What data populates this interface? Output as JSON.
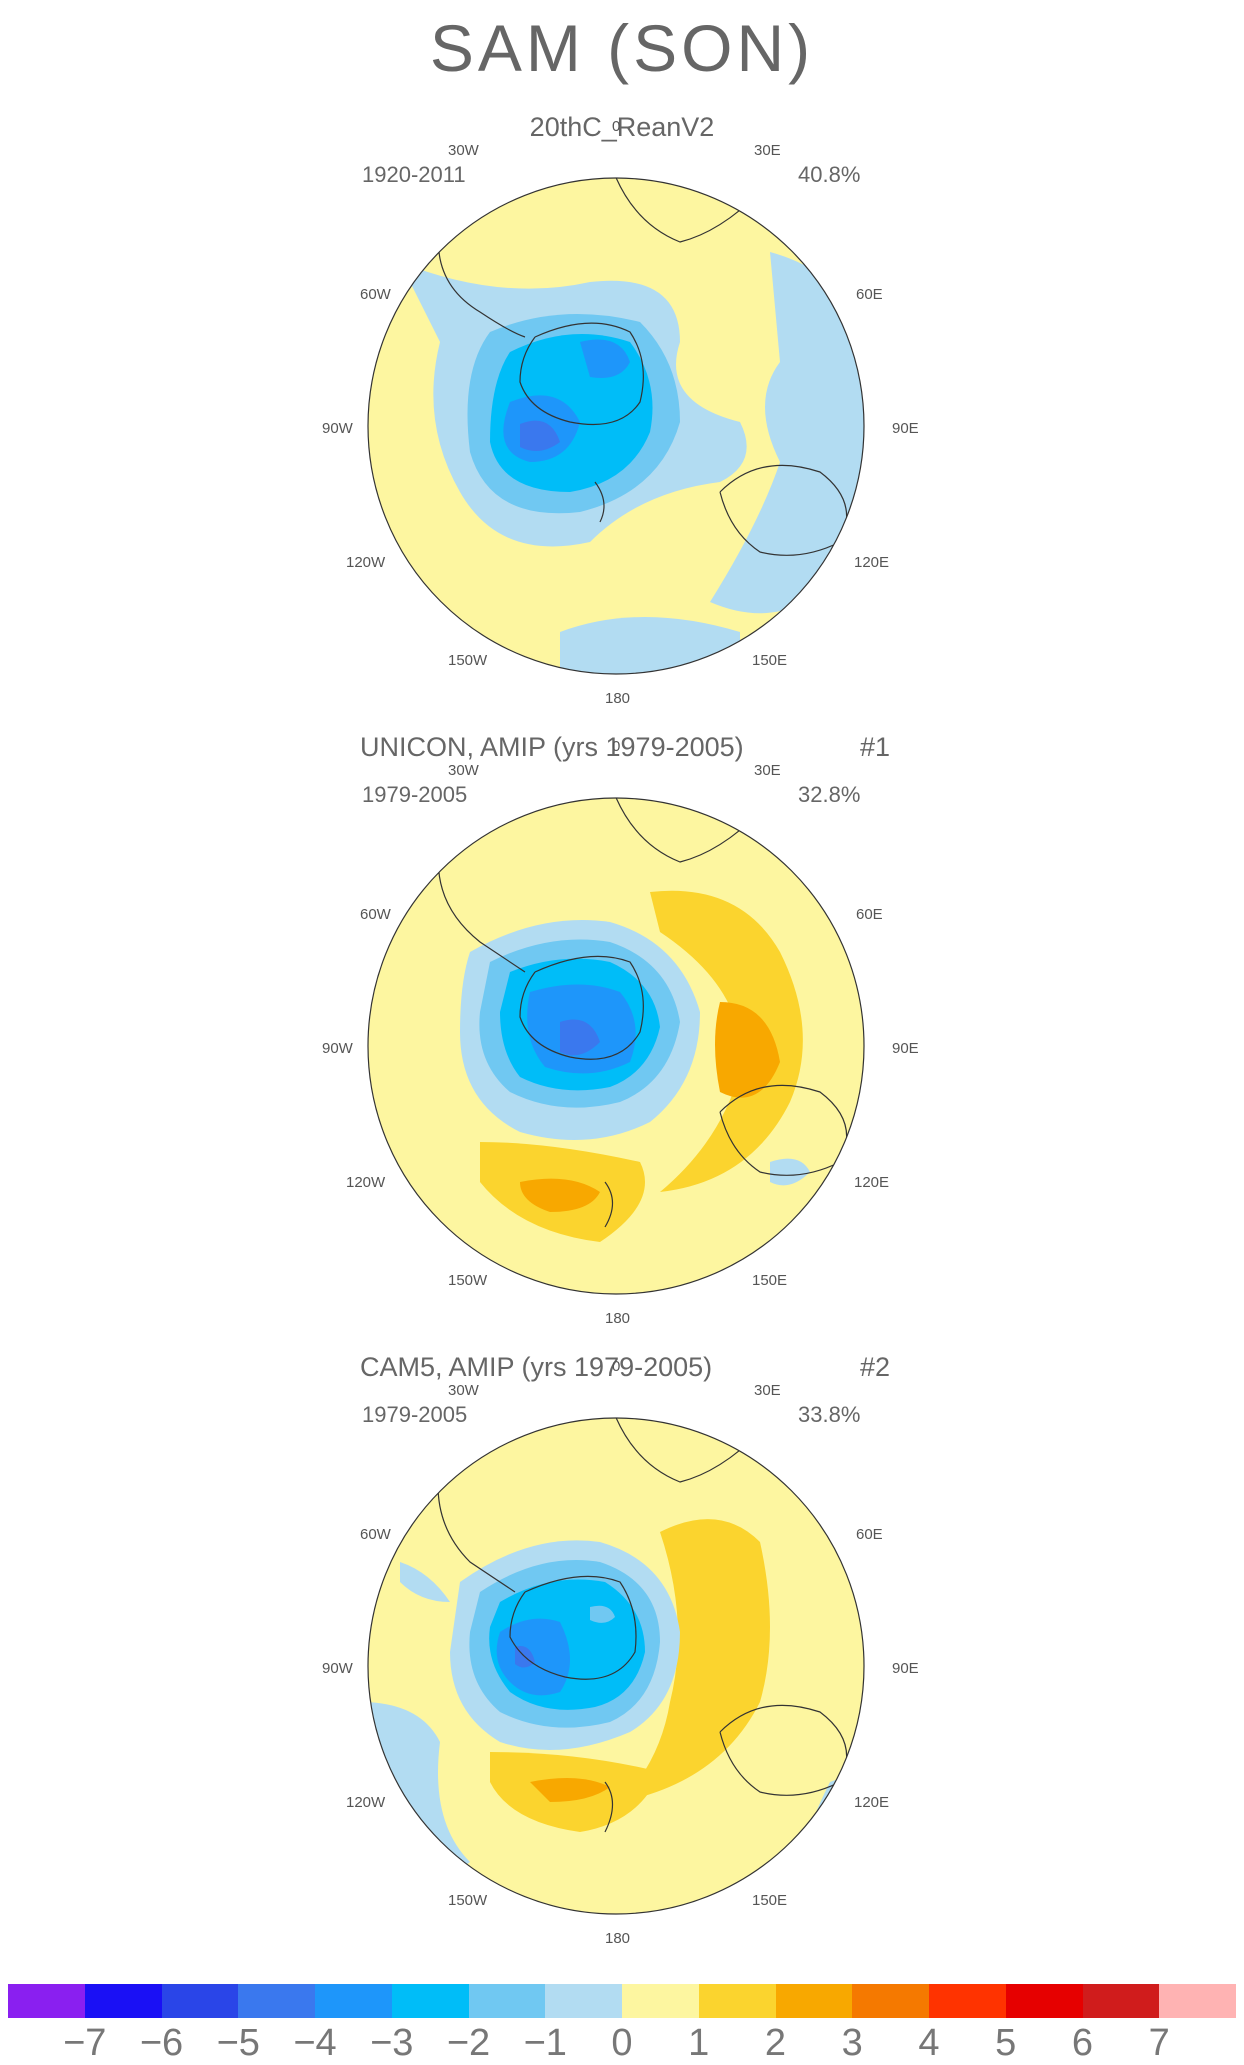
{
  "title": "SAM (SON)",
  "panels": [
    {
      "title": "20thC_ReanV2",
      "number": "",
      "period": "1920-2011",
      "percent": "40.8%"
    },
    {
      "title": "UNICON, AMIP (yrs 1979-2005)",
      "number": "#1",
      "period": "1979-2005",
      "percent": "32.8%"
    },
    {
      "title": "CAM5, AMIP (yrs 1979-2005)",
      "number": "#2",
      "period": "1979-2005",
      "percent": "33.8%"
    }
  ],
  "longitude_labels": {
    "top": "0",
    "bottom": "180",
    "w30": "30W",
    "w60": "60W",
    "w90": "90W",
    "w120": "120W",
    "w150": "150W",
    "e30": "30E",
    "e60": "60E",
    "e90": "90E",
    "e120": "120E",
    "e150": "150E"
  },
  "colorbar": {
    "colors": [
      "#8a1ff0",
      "#1a10f5",
      "#2a45e8",
      "#3a78ee",
      "#1e96fa",
      "#00bdf8",
      "#70c8f2",
      "#b2dcf2",
      "#fdf6a0",
      "#fbd42e",
      "#f8a800",
      "#f57900",
      "#ff3300",
      "#e60000",
      "#d01c1c",
      "#ffb3b3"
    ],
    "ticks": [
      "−7",
      "−6",
      "−5",
      "−4",
      "−3",
      "−2",
      "−1",
      "0",
      "1",
      "2",
      "3",
      "4",
      "5",
      "6",
      "7"
    ]
  }
}
